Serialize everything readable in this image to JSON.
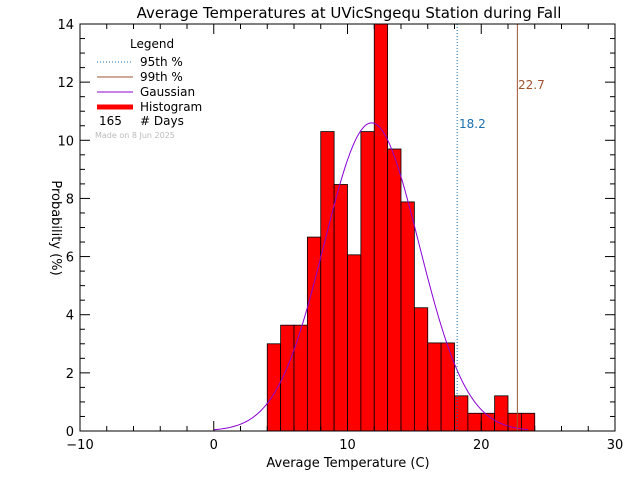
{
  "chart_data": {
    "type": "bar",
    "title": "Average Temperatures at UVicSngequ Station during Fall",
    "xlabel": "Average Temperature (C)",
    "ylabel": "Probability (%)",
    "xlim": [
      -10,
      30
    ],
    "ylim": [
      0,
      14
    ],
    "xticks": [
      -10,
      0,
      10,
      20,
      30
    ],
    "yticks": [
      0,
      2,
      4,
      6,
      8,
      10,
      12,
      14
    ],
    "bin_width": 1,
    "histogram": [
      {
        "x0": 4,
        "value": 3.0
      },
      {
        "x0": 5,
        "value": 3.64
      },
      {
        "x0": 6,
        "value": 3.64
      },
      {
        "x0": 7,
        "value": 6.67
      },
      {
        "x0": 8,
        "value": 10.3
      },
      {
        "x0": 9,
        "value": 8.48
      },
      {
        "x0": 10,
        "value": 6.06
      },
      {
        "x0": 11,
        "value": 10.3
      },
      {
        "x0": 12,
        "value": 14.0
      },
      {
        "x0": 13,
        "value": 9.7
      },
      {
        "x0": 14,
        "value": 7.88
      },
      {
        "x0": 15,
        "value": 4.24
      },
      {
        "x0": 16,
        "value": 3.03
      },
      {
        "x0": 17,
        "value": 3.03
      },
      {
        "x0": 18,
        "value": 1.21
      },
      {
        "x0": 19,
        "value": 0.61
      },
      {
        "x0": 20,
        "value": 0.61
      },
      {
        "x0": 21,
        "value": 1.21
      },
      {
        "x0": 22,
        "value": 0.61
      },
      {
        "x0": 23,
        "value": 0.61
      }
    ],
    "gaussian": {
      "mean": 11.8,
      "peak": 10.6,
      "sigma": 3.55,
      "xmin": 0,
      "xmax": 23.5
    },
    "percentile_95": {
      "value": 18.2,
      "label": "18.2",
      "color": "#1a6faf"
    },
    "percentile_99": {
      "value": 22.7,
      "label": "22.7",
      "color": "#a0522d"
    },
    "colors": {
      "histogram": "#ff0000",
      "gaussian": "#8b00d6",
      "p95": "#1a6faf",
      "p99": "#a0522d"
    }
  },
  "legend": {
    "title": "Legend",
    "items": [
      {
        "label": "95th %",
        "color": "#1a6faf",
        "style": "dotted"
      },
      {
        "label": "99th %",
        "color": "#a0522d",
        "style": "solid"
      },
      {
        "label": "Gaussian",
        "color": "#8b00d6",
        "style": "solid"
      },
      {
        "label": "Histogram",
        "color": "#ff0000",
        "style": "thick"
      }
    ],
    "count_value": "165",
    "count_label": "# Days",
    "made_on": "Made on 8 Jun 2025"
  }
}
